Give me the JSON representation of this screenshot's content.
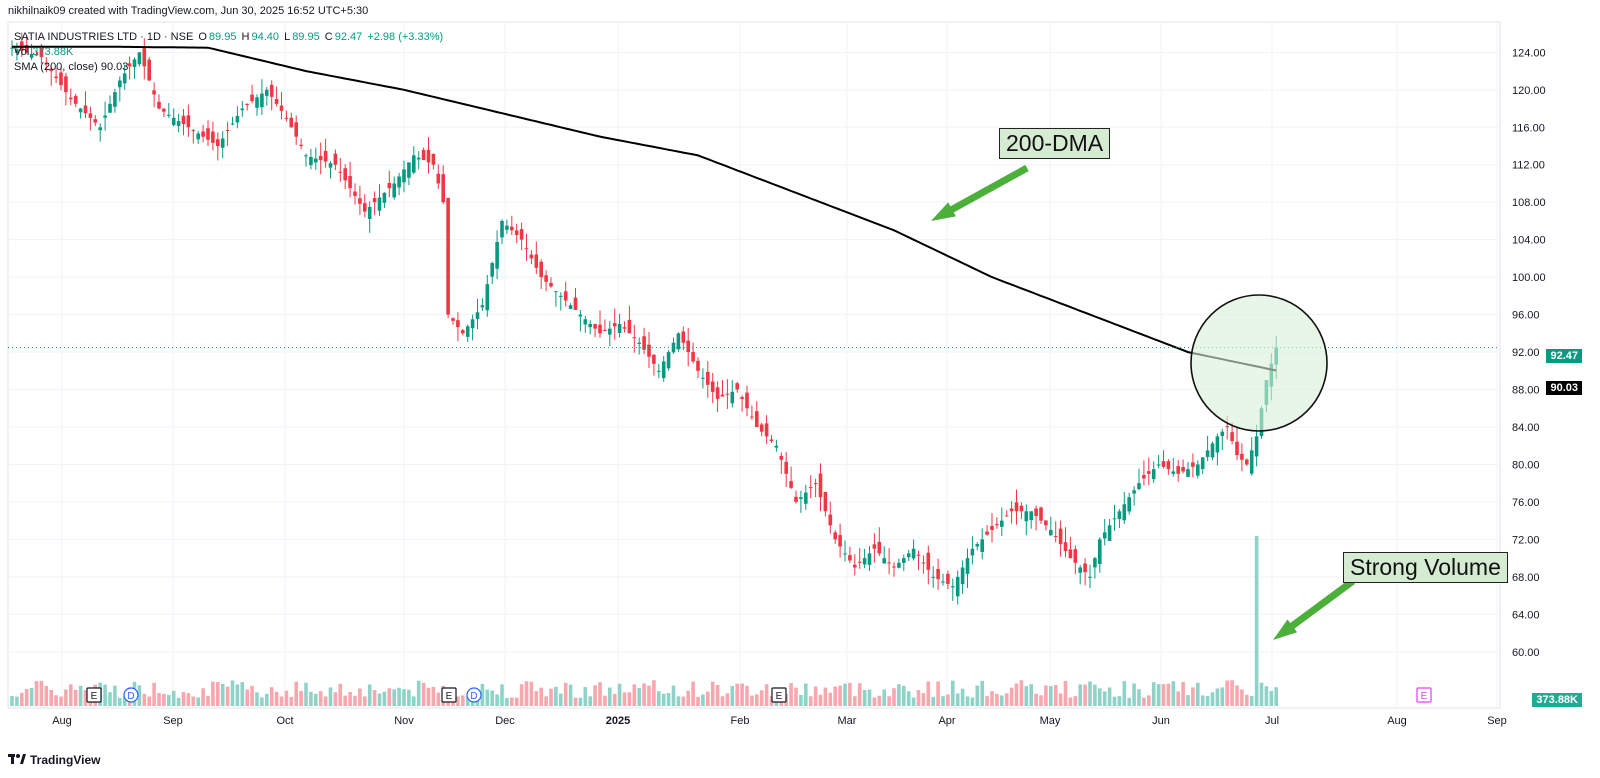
{
  "header": {
    "text": "nikhilnaik09 created with TradingView.com, Jun 30, 2025 16:52 UTC+5:30"
  },
  "legend": {
    "symbol": "SATIA INDUSTRIES LTD · 1D · NSE",
    "open_label": "O",
    "open": "89.95",
    "high_label": "H",
    "high": "94.40",
    "low_label": "L",
    "low": "89.95",
    "close_label": "C",
    "close": "92.47",
    "change": "+2.98 (+3.33%)",
    "vol_label": "Vol",
    "vol_value": "373.88K",
    "sma_label": "SMA (200, close)",
    "sma_value": "90.03"
  },
  "annotations": {
    "dma_label": "200-DMA",
    "volume_label": "Strong Volume"
  },
  "price_tags": {
    "close": "92.47",
    "sma": "90.03",
    "volume": "373.88K"
  },
  "footer": {
    "brand": "TradingView"
  },
  "colors": {
    "up": "#089981",
    "down": "#f23645",
    "up_volume": "#8fd3c8",
    "down_volume": "#f7a7ad",
    "sma": "#000000",
    "annotation_bg": "#d5ecd2",
    "arrow": "#4caf3a"
  },
  "chart_data": {
    "type": "candlestick",
    "y_axis_ticks": [
      60,
      64,
      68,
      72,
      76,
      80,
      84,
      88,
      92,
      96,
      100,
      104,
      108,
      112,
      116,
      120,
      124
    ],
    "ylim": [
      57.2,
      126.6
    ],
    "x_axis_labels": [
      "Aug",
      "Sep",
      "Oct",
      "Nov",
      "Dec",
      "2025",
      "Feb",
      "Mar",
      "Apr",
      "May",
      "Jun",
      "Jul",
      "Aug",
      "Sep"
    ],
    "events": [
      "E",
      "D",
      "E",
      "D",
      "E",
      "E"
    ],
    "last_close": 92.47,
    "sma_last": 90.03,
    "volume_last": "373.88K",
    "price_path": [
      [
        0,
        124.5
      ],
      [
        6,
        123.5
      ],
      [
        12,
        119
      ],
      [
        18,
        116
      ],
      [
        22,
        121
      ],
      [
        26,
        124
      ],
      [
        30,
        118
      ],
      [
        36,
        116
      ],
      [
        42,
        114
      ],
      [
        47,
        118
      ],
      [
        52,
        120
      ],
      [
        56,
        117
      ],
      [
        60,
        113
      ],
      [
        66,
        112
      ],
      [
        72,
        107
      ],
      [
        78,
        110
      ],
      [
        82,
        113
      ],
      [
        86,
        112
      ],
      [
        88,
        108
      ],
      [
        89,
        96
      ],
      [
        92,
        94
      ],
      [
        96,
        97
      ],
      [
        100,
        106
      ],
      [
        104,
        104
      ],
      [
        108,
        100
      ],
      [
        112,
        98
      ],
      [
        116,
        96
      ],
      [
        120,
        94
      ],
      [
        124,
        95
      ],
      [
        128,
        93
      ],
      [
        132,
        90
      ],
      [
        136,
        94
      ],
      [
        140,
        90
      ],
      [
        144,
        87
      ],
      [
        148,
        88
      ],
      [
        152,
        84
      ],
      [
        156,
        82
      ],
      [
        160,
        76
      ],
      [
        164,
        78
      ],
      [
        168,
        72
      ],
      [
        172,
        69
      ],
      [
        176,
        71
      ],
      [
        180,
        69
      ],
      [
        184,
        71
      ],
      [
        188,
        68
      ],
      [
        192,
        67
      ],
      [
        196,
        71
      ],
      [
        200,
        73
      ],
      [
        204,
        75
      ],
      [
        208,
        75
      ],
      [
        212,
        73
      ],
      [
        216,
        70
      ],
      [
        220,
        68
      ],
      [
        222,
        72
      ],
      [
        226,
        75
      ],
      [
        230,
        78
      ],
      [
        234,
        80
      ],
      [
        238,
        79
      ],
      [
        242,
        80
      ],
      [
        246,
        83
      ],
      [
        248,
        84
      ],
      [
        250,
        81
      ],
      [
        252,
        80
      ],
      [
        254,
        83
      ],
      [
        256,
        89
      ],
      [
        258,
        92.47
      ]
    ],
    "sma_path": [
      [
        0,
        124.6
      ],
      [
        20,
        124.6
      ],
      [
        40,
        124.5
      ],
      [
        60,
        122
      ],
      [
        80,
        120
      ],
      [
        100,
        117.5
      ],
      [
        120,
        115
      ],
      [
        140,
        113
      ],
      [
        160,
        109
      ],
      [
        180,
        105
      ],
      [
        200,
        100
      ],
      [
        220,
        96
      ],
      [
        240,
        92
      ],
      [
        258,
        90.03
      ]
    ]
  }
}
